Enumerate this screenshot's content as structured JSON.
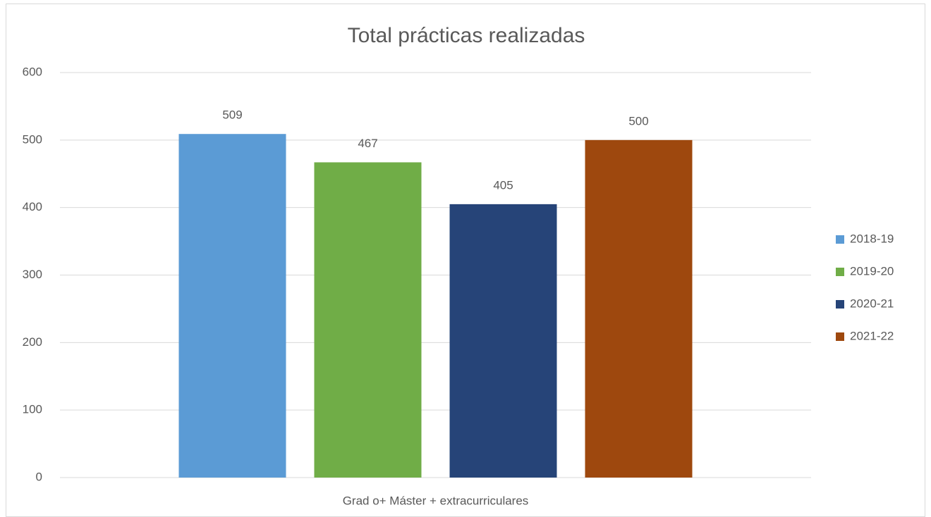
{
  "chart_data": {
    "type": "bar",
    "title": "Total prácticas realizadas",
    "categories": [
      "Grad o+ Máster + extracurriculares"
    ],
    "series": [
      {
        "name": "2018-19",
        "color": "#5b9bd5",
        "values": [
          509
        ]
      },
      {
        "name": "2019-20",
        "color": "#70ad47",
        "values": [
          467
        ]
      },
      {
        "name": "2020-21",
        "color": "#264478",
        "values": [
          405
        ]
      },
      {
        "name": "2021-22",
        "color": "#9e480e",
        "values": [
          500
        ]
      }
    ],
    "ylim": [
      0,
      600
    ],
    "yticks": [
      0,
      100,
      200,
      300,
      400,
      500,
      600
    ],
    "grid": true,
    "legend": "right"
  }
}
